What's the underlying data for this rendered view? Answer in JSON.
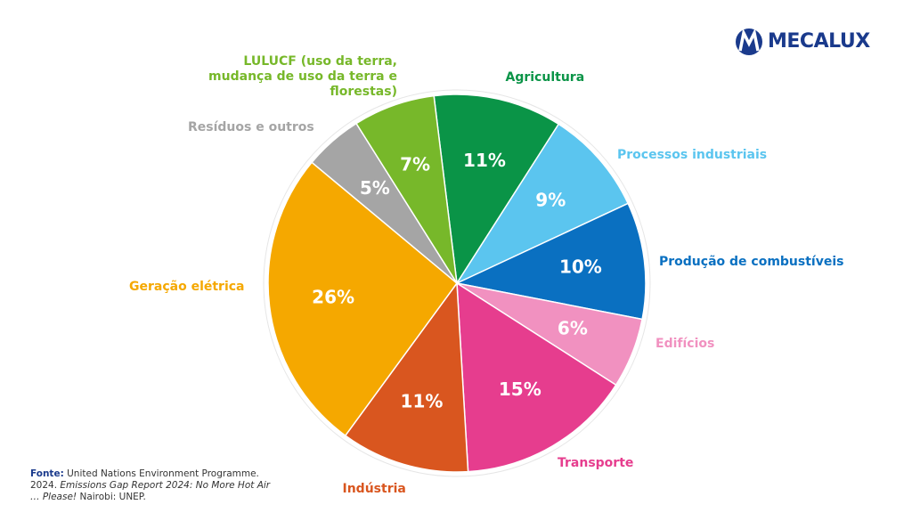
{
  "chart_data": {
    "type": "pie",
    "categories": [
      "Agricultura",
      "Processos industriais",
      "Produção de combustíveis",
      "Edifícios",
      "Transporte",
      "Indústria",
      "Geração elétrica",
      "Resíduos e outros",
      "LULUCF (uso da terra, mudança de uso da terra e florestas)"
    ],
    "values": [
      11,
      9,
      10,
      6,
      15,
      11,
      26,
      5,
      7
    ],
    "value_labels": [
      "11%",
      "9%",
      "10%",
      "6%",
      "15%",
      "11%",
      "26%",
      "5%",
      "7%"
    ],
    "colors": [
      "#0a9447",
      "#5bc5ef",
      "#0a70c1",
      "#f191c0",
      "#e63d8e",
      "#d9561f",
      "#f5a800",
      "#a5a5a5",
      "#77b82a"
    ]
  },
  "logo": "MECALUX",
  "source": [
    "Fonte:",
    " United Nations Environment Programme. 2024. ",
    "Emissions Gap Report 2024: No More Hot Air … Please!",
    " Nairobi: UNEP."
  ]
}
